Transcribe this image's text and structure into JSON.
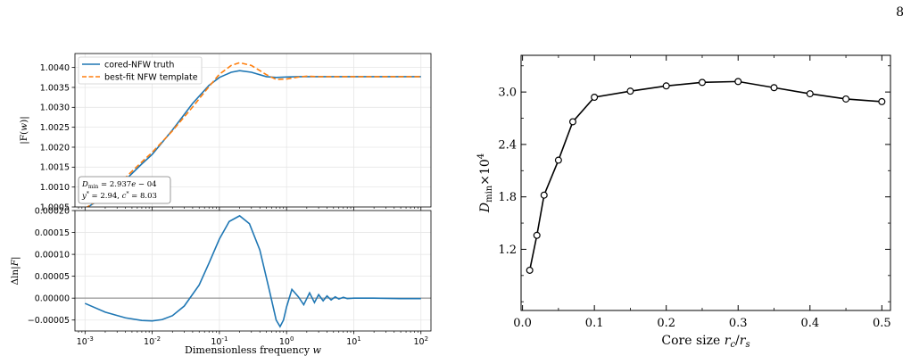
{
  "page": {
    "number": "8"
  },
  "colors": {
    "truth": "#1f77b4",
    "template": "#ff7f0e",
    "right_line": "#000000",
    "zero_line": "#7f7f7f",
    "grid": "#e6e6e6"
  },
  "chart_data": [
    {
      "type": "line",
      "panel": "top-left",
      "xscale": "log",
      "xlim": [
        0.000708,
        141
      ],
      "ylim": [
        1.0005,
        1.00435
      ],
      "ylabel": "|F(w)|",
      "xtick_labels": [],
      "yticks": [
        1.0005,
        1.001,
        1.0015,
        1.002,
        1.0025,
        1.003,
        1.0035,
        1.004
      ],
      "ytick_labels": [
        "1.0005",
        "1.0010",
        "1.0015",
        "1.0020",
        "1.0025",
        "1.0030",
        "1.0035",
        "1.0040"
      ],
      "grid": true,
      "legend_position": "top-left",
      "legend": [
        "cored-NFW truth",
        "best-fit NFW template"
      ],
      "annotation": [
        "D_min = 2.937e − 04",
        "y* = 2.94, c* = 8.03"
      ],
      "series": [
        {
          "name": "cored-NFW truth",
          "style": "solid",
          "x": [
            0.001,
            0.002,
            0.004,
            0.007,
            0.01,
            0.02,
            0.04,
            0.07,
            0.1,
            0.15,
            0.2,
            0.3,
            0.5,
            0.7,
            1,
            1.5,
            2,
            3,
            5,
            10,
            20,
            50,
            100
          ],
          "y": [
            1.00045,
            1.00078,
            1.00118,
            1.00158,
            1.00182,
            1.00243,
            1.0031,
            1.00355,
            1.00375,
            1.00388,
            1.00392,
            1.00388,
            1.00377,
            1.00375,
            1.00376,
            1.00377,
            1.00377,
            1.00377,
            1.00377,
            1.00377,
            1.00377,
            1.00377,
            1.00377
          ]
        },
        {
          "name": "best-fit NFW template",
          "style": "dashed",
          "x": [
            0.001,
            0.002,
            0.004,
            0.007,
            0.01,
            0.02,
            0.04,
            0.07,
            0.1,
            0.15,
            0.2,
            0.3,
            0.5,
            0.7,
            1,
            1.5,
            2,
            3,
            5,
            10,
            20,
            50,
            100
          ],
          "y": [
            1.00046,
            1.0008,
            1.00124,
            1.00163,
            1.00187,
            1.00241,
            1.00301,
            1.00352,
            1.00383,
            1.00405,
            1.00412,
            1.00405,
            1.00382,
            1.0037,
            1.00371,
            1.00376,
            1.00378,
            1.00377,
            1.00377,
            1.00377,
            1.00377,
            1.00377,
            1.00377
          ]
        }
      ]
    },
    {
      "type": "line",
      "panel": "bottom-left",
      "xscale": "log",
      "xlim": [
        0.000708,
        141
      ],
      "ylim": [
        -7.5e-05,
        0.0002
      ],
      "xlabel": "Dimensionless frequency w",
      "ylabel": "Δln|F|",
      "xticks": [
        0.001,
        0.01,
        0.1,
        1,
        10,
        100
      ],
      "xtick_labels": [
        "10^-3",
        "10^-2",
        "10^-1",
        "10^0",
        "10^1",
        "10^2"
      ],
      "yticks": [
        -5e-05,
        0,
        5e-05,
        0.0001,
        0.00015,
        0.0002
      ],
      "ytick_labels": [
        "−0.00005",
        "0.00000",
        "0.00005",
        "0.00010",
        "0.00015",
        "0.00020"
      ],
      "grid": true,
      "reference_line": 0,
      "series": [
        {
          "name": "",
          "style": "solid",
          "x": [
            0.001,
            0.002,
            0.004,
            0.007,
            0.01,
            0.014,
            0.02,
            0.03,
            0.05,
            0.07,
            0.1,
            0.14,
            0.2,
            0.28,
            0.4,
            0.55,
            0.7,
            0.8,
            0.9,
            1.0,
            1.2,
            1.5,
            1.8,
            2.2,
            2.6,
            3.0,
            3.5,
            4.0,
            4.6,
            5.3,
            6.0,
            7.0,
            8.0,
            10,
            20,
            50,
            100
          ],
          "y": [
            -1.2e-05,
            -3.2e-05,
            -4.5e-05,
            -5.1e-05,
            -5.2e-05,
            -4.9e-05,
            -4e-05,
            -1.8e-05,
            3e-05,
            8e-05,
            0.000135,
            0.000175,
            0.000188,
            0.00017,
            0.00011,
            2e-05,
            -5e-05,
            -6.5e-05,
            -5e-05,
            -2e-05,
            2e-05,
            3e-06,
            -1.5e-05,
            1.2e-05,
            -1e-05,
            8e-06,
            -6e-06,
            5e-06,
            -4e-06,
            3e-06,
            -2e-06,
            2e-06,
            -1e-06,
            0.0,
            0.0,
            -1e-06,
            -1e-06
          ]
        }
      ]
    },
    {
      "type": "line",
      "panel": "right",
      "xlim": [
        -0.002,
        0.512
      ],
      "ylim": [
        0.5,
        3.42
      ],
      "xlabel": "Core size r_c/r_s",
      "ylabel": "D_min×10^4",
      "xticks": [
        0,
        0.1,
        0.2,
        0.3,
        0.4,
        0.5
      ],
      "xtick_labels": [
        "0.0",
        "0.1",
        "0.2",
        "0.3",
        "0.4",
        "0.5"
      ],
      "yticks": [
        1.2,
        1.8,
        2.4,
        3.0
      ],
      "ytick_labels": [
        "1.2",
        "1.8",
        "2.4",
        "3.0"
      ],
      "grid": false,
      "series": [
        {
          "name": "",
          "style": "solid-markers",
          "x": [
            0.01,
            0.02,
            0.03,
            0.05,
            0.07,
            0.1,
            0.15,
            0.2,
            0.25,
            0.3,
            0.35,
            0.4,
            0.45,
            0.5
          ],
          "y": [
            0.96,
            1.36,
            1.82,
            2.22,
            2.66,
            2.94,
            3.01,
            3.07,
            3.11,
            3.12,
            3.05,
            2.98,
            2.92,
            2.89
          ]
        }
      ]
    }
  ]
}
